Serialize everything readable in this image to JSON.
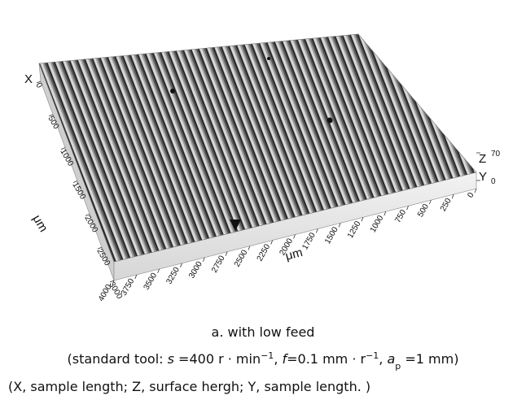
{
  "figure": {
    "x_label": "X",
    "y_label": "Y",
    "z_label": "Z",
    "x_unit": "μm",
    "y_unit": "μm",
    "x_ticks": [
      0,
      500,
      1000,
      1500,
      2000,
      2500,
      3000
    ],
    "y_ticks": [
      4000,
      3750,
      3500,
      3250,
      3000,
      2750,
      2500,
      2250,
      2000,
      1750,
      1500,
      1250,
      1000,
      750,
      500,
      250,
      0
    ],
    "z_ticks": [
      70,
      0
    ]
  },
  "caption": {
    "title": "a. with low feed",
    "line2": [
      {
        "text": "(standard tool: ",
        "style": "normal"
      },
      {
        "text": "s",
        "style": "italic"
      },
      {
        "text": " =400 r · min",
        "style": "normal"
      },
      {
        "text": "−1",
        "style": "sup"
      },
      {
        "text": ", ",
        "style": "normal"
      },
      {
        "text": "f",
        "style": "italic"
      },
      {
        "text": "=0.1 mm · r",
        "style": "normal"
      },
      {
        "text": "−1",
        "style": "sup"
      },
      {
        "text": ", ",
        "style": "normal"
      },
      {
        "text": "a",
        "style": "italic"
      },
      {
        "text": "p",
        "style": "sub"
      },
      {
        "text": " =1 mm)",
        "style": "normal"
      }
    ],
    "line3": "(X, sample length; Z, surface hergh; Y, sample length. )"
  }
}
